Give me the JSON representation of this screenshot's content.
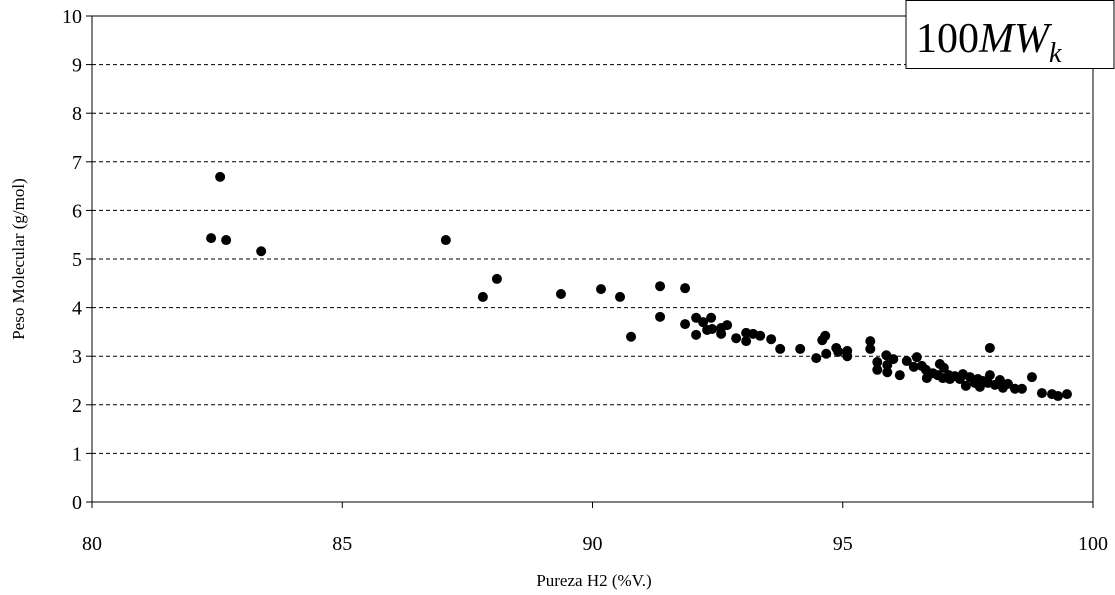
{
  "chart_data": {
    "type": "scatter",
    "x_label": "Pureza H2 (%V.)",
    "y_label": "Peso Molecular (g/mol)",
    "annotation": {
      "text": "100",
      "italic": "MW",
      "sub": "k"
    },
    "color": "#000000",
    "grid": true,
    "xlim": [
      80,
      100
    ],
    "ylim": [
      0,
      10
    ],
    "xticks": [
      80,
      85,
      90,
      95,
      100
    ],
    "yticks": [
      0,
      1,
      2,
      3,
      4,
      5,
      6,
      7,
      8,
      9,
      10
    ],
    "x": [
      82.38,
      82.56,
      82.68,
      83.38,
      87.07,
      87.81,
      88.09,
      89.37,
      90.17,
      90.55,
      90.77,
      91.35,
      91.35,
      91.85,
      91.85,
      92.07,
      92.07,
      92.21,
      92.29,
      92.37,
      92.39,
      92.57,
      92.57,
      92.69,
      92.87,
      93.07,
      93.07,
      93.21,
      93.35,
      93.57,
      93.75,
      94.15,
      94.47,
      94.59,
      94.65,
      94.67,
      94.87,
      94.91,
      95.09,
      95.09,
      95.55,
      95.55,
      95.69,
      95.69,
      95.87,
      95.89,
      95.89,
      96.01,
      96.14,
      96.28,
      96.42,
      96.48,
      96.58,
      96.66,
      96.68,
      96.8,
      96.9,
      96.94,
      97.0,
      97.02,
      97.12,
      97.14,
      97.24,
      97.34,
      97.4,
      97.46,
      97.54,
      97.64,
      97.7,
      97.74,
      97.8,
      97.9,
      97.94,
      97.94,
      98.04,
      98.14,
      98.2,
      98.3,
      98.44,
      98.58,
      98.78,
      98.98,
      99.18,
      99.3,
      99.48
    ],
    "values": [
      5.43,
      6.69,
      5.39,
      5.16,
      5.39,
      4.22,
      4.59,
      4.28,
      4.38,
      4.22,
      3.4,
      4.44,
      3.81,
      4.4,
      3.66,
      3.79,
      3.44,
      3.7,
      3.54,
      3.79,
      3.56,
      3.46,
      3.58,
      3.64,
      3.37,
      3.48,
      3.31,
      3.46,
      3.42,
      3.35,
      3.15,
      3.15,
      2.96,
      3.33,
      3.42,
      3.05,
      3.17,
      3.09,
      3.11,
      3.0,
      3.31,
      3.15,
      2.88,
      2.72,
      3.02,
      2.67,
      2.82,
      2.94,
      2.61,
      2.9,
      2.78,
      2.98,
      2.8,
      2.72,
      2.55,
      2.65,
      2.61,
      2.84,
      2.55,
      2.76,
      2.61,
      2.53,
      2.59,
      2.53,
      2.63,
      2.39,
      2.57,
      2.45,
      2.53,
      2.37,
      2.49,
      2.45,
      2.61,
      3.17,
      2.41,
      2.51,
      2.35,
      2.43,
      2.33,
      2.33,
      2.57,
      2.24,
      2.22,
      2.18,
      2.22
    ]
  }
}
